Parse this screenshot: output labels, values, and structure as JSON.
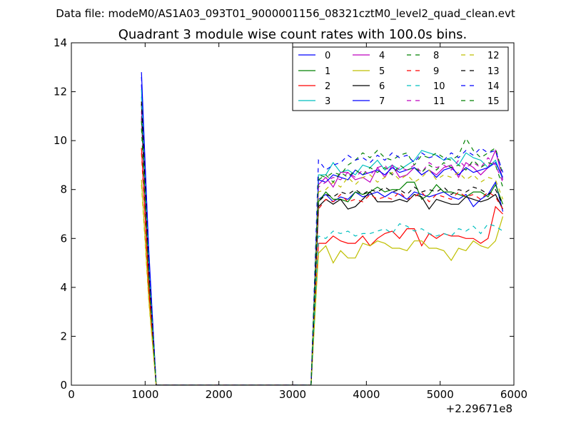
{
  "figure": {
    "suptitle": "Data file: modeM0/AS1A03_093T01_9000001156_08321cztM0_level2_quad_clean.evt",
    "title": "Quadrant 3 module wise count rates with 100.0s bins.",
    "x_offset_label": "+2.29671e8"
  },
  "chart_data": {
    "type": "line",
    "title": "Quadrant 3 module wise count rates with 100.0s bins.",
    "xlabel": "",
    "ylabel": "",
    "xlim": [
      0,
      6000
    ],
    "ylim": [
      0,
      14
    ],
    "x_ticks": [
      0,
      1000,
      2000,
      3000,
      4000,
      5000,
      6000
    ],
    "x_tick_labels": [
      "0",
      "1000",
      "2000",
      "3000",
      "4000",
      "5000",
      "6000"
    ],
    "y_ticks": [
      0,
      2,
      4,
      6,
      8,
      10,
      12,
      14
    ],
    "y_tick_labels": [
      "0",
      "2",
      "4",
      "6",
      "8",
      "10",
      "12",
      "14"
    ],
    "x_offset": "+2.29671e8",
    "grid": false,
    "legend_position": "top-right",
    "x": [
      950,
      1050,
      1150,
      1250,
      1350,
      1450,
      1550,
      1650,
      1750,
      1850,
      1950,
      2050,
      2150,
      2250,
      2350,
      2450,
      2550,
      2650,
      2750,
      2850,
      2950,
      3050,
      3150,
      3250,
      3350,
      3450,
      3550,
      3650,
      3750,
      3850,
      3950,
      4050,
      4150,
      4250,
      4350,
      4450,
      4550,
      4650,
      4750,
      4850,
      4950,
      5050,
      5150,
      5250,
      5350,
      5450,
      5550,
      5650,
      5750,
      5850
    ],
    "series": [
      {
        "name": "0",
        "color": "#0000ff",
        "dash": "solid",
        "values": [
          12.3,
          5.5,
          0,
          0,
          0,
          0,
          0,
          0,
          0,
          0,
          0,
          0,
          0,
          0,
          0,
          0,
          0,
          0,
          0,
          0,
          0,
          0,
          0,
          0,
          7.6,
          7.8,
          7.5,
          7.7,
          7.6,
          7.9,
          7.7,
          7.8,
          7.9,
          7.7,
          7.9,
          7.8,
          7.6,
          7.9,
          7.8,
          7.7,
          7.8,
          7.9,
          7.7,
          7.6,
          7.8,
          7.3,
          7.6,
          7.8,
          8.3,
          7.1
        ]
      },
      {
        "name": "1",
        "color": "#008000",
        "dash": "solid",
        "values": [
          10.9,
          4.5,
          0,
          0,
          0,
          0,
          0,
          0,
          0,
          0,
          0,
          0,
          0,
          0,
          0,
          0,
          0,
          0,
          0,
          0,
          0,
          0,
          0,
          0,
          7.5,
          7.9,
          7.6,
          7.6,
          7.5,
          7.9,
          7.8,
          7.9,
          8.1,
          7.9,
          8.0,
          8.0,
          8.3,
          8.3,
          7.6,
          7.8,
          8.2,
          7.9,
          7.9,
          7.8,
          7.7,
          7.9,
          7.9,
          7.7,
          8.2,
          7.4
        ]
      },
      {
        "name": "2",
        "color": "#ff0000",
        "dash": "solid",
        "values": [
          9.7,
          4.0,
          0,
          0,
          0,
          0,
          0,
          0,
          0,
          0,
          0,
          0,
          0,
          0,
          0,
          0,
          0,
          0,
          0,
          0,
          0,
          0,
          0,
          0,
          5.8,
          5.8,
          6.1,
          5.9,
          5.8,
          5.8,
          6.1,
          5.7,
          6.0,
          6.2,
          6.3,
          6.0,
          6.4,
          6.4,
          5.7,
          6.2,
          6.0,
          6.2,
          6.1,
          6.1,
          6.0,
          6.0,
          5.8,
          6.0,
          7.3,
          7.0
        ]
      },
      {
        "name": "3",
        "color": "#00bfbf",
        "dash": "solid",
        "values": [
          12.1,
          5.0,
          0,
          0,
          0,
          0,
          0,
          0,
          0,
          0,
          0,
          0,
          0,
          0,
          0,
          0,
          0,
          0,
          0,
          0,
          0,
          0,
          0,
          0,
          8.6,
          8.6,
          9.1,
          8.7,
          8.8,
          8.6,
          9.0,
          8.9,
          9.2,
          8.8,
          9.0,
          8.8,
          9.0,
          9.2,
          9.6,
          9.5,
          9.4,
          9.2,
          9.3,
          9.0,
          9.5,
          9.3,
          9.2,
          8.9,
          9.2,
          8.4
        ]
      },
      {
        "name": "4",
        "color": "#bf00bf",
        "dash": "solid",
        "values": [
          11.0,
          4.6,
          0,
          0,
          0,
          0,
          0,
          0,
          0,
          0,
          0,
          0,
          0,
          0,
          0,
          0,
          0,
          0,
          0,
          0,
          0,
          0,
          0,
          0,
          8.2,
          8.5,
          8.1,
          8.7,
          8.7,
          8.4,
          8.5,
          8.3,
          8.9,
          8.5,
          9.0,
          8.5,
          8.6,
          8.9,
          8.6,
          8.8,
          8.6,
          8.9,
          9.0,
          8.5,
          9.1,
          8.9,
          8.6,
          8.9,
          9.6,
          8.4
        ]
      },
      {
        "name": "5",
        "color": "#bfbf00",
        "dash": "solid",
        "values": [
          8.4,
          3.5,
          0,
          0,
          0,
          0,
          0,
          0,
          0,
          0,
          0,
          0,
          0,
          0,
          0,
          0,
          0,
          0,
          0,
          0,
          0,
          0,
          0,
          0,
          5.4,
          5.7,
          5.0,
          5.5,
          5.2,
          5.2,
          5.8,
          5.7,
          5.9,
          5.8,
          5.6,
          5.6,
          5.5,
          5.9,
          5.9,
          5.6,
          5.6,
          5.5,
          5.1,
          5.6,
          5.5,
          5.9,
          5.7,
          5.6,
          5.9,
          6.9
        ]
      },
      {
        "name": "6",
        "color": "#000000",
        "dash": "solid",
        "values": [
          11.5,
          4.8,
          0,
          0,
          0,
          0,
          0,
          0,
          0,
          0,
          0,
          0,
          0,
          0,
          0,
          0,
          0,
          0,
          0,
          0,
          0,
          0,
          0,
          0,
          7.3,
          7.6,
          7.4,
          7.6,
          7.2,
          7.3,
          7.6,
          7.9,
          7.5,
          7.5,
          7.5,
          7.6,
          7.5,
          7.8,
          7.7,
          7.2,
          7.6,
          7.5,
          7.4,
          7.4,
          7.7,
          7.6,
          7.5,
          7.6,
          7.8,
          7.2
        ]
      },
      {
        "name": "7",
        "color": "#0000ff",
        "dash": "solid",
        "values": [
          12.8,
          5.3,
          0,
          0,
          0,
          0,
          0,
          0,
          0,
          0,
          0,
          0,
          0,
          0,
          0,
          0,
          0,
          0,
          0,
          0,
          0,
          0,
          0,
          0,
          8.4,
          8.3,
          8.6,
          8.5,
          8.4,
          8.8,
          8.6,
          8.7,
          8.8,
          8.6,
          8.9,
          8.7,
          8.8,
          8.9,
          8.6,
          8.8,
          8.5,
          8.8,
          8.9,
          8.6,
          8.9,
          8.7,
          8.8,
          8.9,
          9.1,
          8.5
        ]
      },
      {
        "name": "8",
        "color": "#008000",
        "dash": "dashed",
        "values": [
          10.5,
          4.3,
          0,
          0,
          0,
          0,
          0,
          0,
          0,
          0,
          0,
          0,
          0,
          0,
          0,
          0,
          0,
          0,
          0,
          0,
          0,
          0,
          0,
          0,
          8.6,
          8.5,
          8.7,
          8.6,
          9.0,
          9.2,
          9.5,
          9.3,
          9.6,
          9.3,
          9.2,
          9.4,
          9.5,
          9.0,
          9.4,
          9.3,
          9.5,
          9.3,
          9.2,
          9.4,
          10.1,
          9.6,
          9.3,
          9.5,
          9.7,
          8.6
        ]
      },
      {
        "name": "9",
        "color": "#ff0000",
        "dash": "dashed",
        "values": [
          9.5,
          3.9,
          0,
          0,
          0,
          0,
          0,
          0,
          0,
          0,
          0,
          0,
          0,
          0,
          0,
          0,
          0,
          0,
          0,
          0,
          0,
          0,
          0,
          0,
          7.2,
          7.6,
          7.5,
          7.8,
          7.5,
          7.6,
          7.5,
          7.8,
          7.6,
          7.7,
          7.6,
          7.9,
          7.6,
          7.7,
          7.9,
          7.5,
          7.8,
          7.7,
          7.6,
          7.9,
          7.7,
          7.8,
          7.6,
          7.9,
          7.7,
          7.2
        ]
      },
      {
        "name": "10",
        "color": "#00bfbf",
        "dash": "dashed",
        "values": [
          11.8,
          4.9,
          0,
          0,
          0,
          0,
          0,
          0,
          0,
          0,
          0,
          0,
          0,
          0,
          0,
          0,
          0,
          0,
          0,
          0,
          0,
          0,
          0,
          0,
          6.1,
          6.0,
          6.3,
          6.2,
          6.3,
          6.1,
          6.2,
          6.2,
          6.3,
          6.4,
          6.2,
          6.6,
          6.5,
          6.3,
          6.4,
          6.2,
          6.1,
          6.2,
          6.1,
          6.4,
          6.3,
          6.5,
          6.2,
          6.6,
          6.5,
          6.3
        ]
      },
      {
        "name": "11",
        "color": "#bf00bf",
        "dash": "dashed",
        "values": [
          11.2,
          4.7,
          0,
          0,
          0,
          0,
          0,
          0,
          0,
          0,
          0,
          0,
          0,
          0,
          0,
          0,
          0,
          0,
          0,
          0,
          0,
          0,
          0,
          0,
          8.1,
          8.3,
          8.5,
          8.4,
          8.7,
          8.5,
          8.8,
          8.6,
          8.9,
          9.0,
          8.6,
          8.9,
          8.8,
          9.0,
          8.7,
          9.1,
          8.9,
          9.0,
          8.8,
          9.2,
          8.9,
          9.1,
          8.9,
          9.3,
          9.0,
          8.3
        ]
      },
      {
        "name": "12",
        "color": "#bfbf00",
        "dash": "dashed",
        "values": [
          8.2,
          3.4,
          0,
          0,
          0,
          0,
          0,
          0,
          0,
          0,
          0,
          0,
          0,
          0,
          0,
          0,
          0,
          0,
          0,
          0,
          0,
          0,
          0,
          0,
          7.9,
          8.0,
          8.3,
          8.1,
          8.5,
          8.2,
          8.5,
          8.6,
          8.3,
          8.5,
          8.7,
          8.4,
          8.6,
          8.3,
          8.5,
          8.8,
          8.4,
          8.6,
          8.5,
          8.7,
          8.4,
          8.6,
          8.3,
          8.5,
          8.4,
          7.6
        ]
      },
      {
        "name": "13",
        "color": "#000000",
        "dash": "dashed",
        "values": [
          11.6,
          4.8,
          0,
          0,
          0,
          0,
          0,
          0,
          0,
          0,
          0,
          0,
          0,
          0,
          0,
          0,
          0,
          0,
          0,
          0,
          0,
          0,
          0,
          0,
          7.5,
          7.8,
          7.7,
          7.9,
          7.8,
          8.0,
          7.8,
          8.0,
          7.9,
          8.1,
          7.9,
          8.0,
          7.8,
          8.1,
          7.9,
          8.0,
          7.9,
          8.1,
          7.8,
          8.0,
          7.9,
          8.1,
          8.0,
          7.8,
          8.0,
          7.4
        ]
      },
      {
        "name": "14",
        "color": "#0000ff",
        "dash": "dashed",
        "values": [
          12.6,
          5.2,
          0,
          0,
          0,
          0,
          0,
          0,
          0,
          0,
          0,
          0,
          0,
          0,
          0,
          0,
          0,
          0,
          0,
          0,
          0,
          0,
          0,
          0,
          9.2,
          8.8,
          9.0,
          9.1,
          9.4,
          9.2,
          9.3,
          9.1,
          9.4,
          9.2,
          9.5,
          9.3,
          9.4,
          9.1,
          9.5,
          9.3,
          9.4,
          9.2,
          9.5,
          9.3,
          9.6,
          9.4,
          9.7,
          9.5,
          9.6,
          8.7
        ]
      },
      {
        "name": "15",
        "color": "#008000",
        "dash": "dashed",
        "values": [
          10.8,
          4.5,
          0,
          0,
          0,
          0,
          0,
          0,
          0,
          0,
          0,
          0,
          0,
          0,
          0,
          0,
          0,
          0,
          0,
          0,
          0,
          0,
          0,
          0,
          8.4,
          8.6,
          8.3,
          8.7,
          8.5,
          8.8,
          8.6,
          8.9,
          8.7,
          8.9,
          8.6,
          9.0,
          8.8,
          8.9,
          8.7,
          9.0,
          8.8,
          9.1,
          8.9,
          9.0,
          8.8,
          9.2,
          8.9,
          9.1,
          9.0,
          8.1
        ]
      }
    ]
  }
}
